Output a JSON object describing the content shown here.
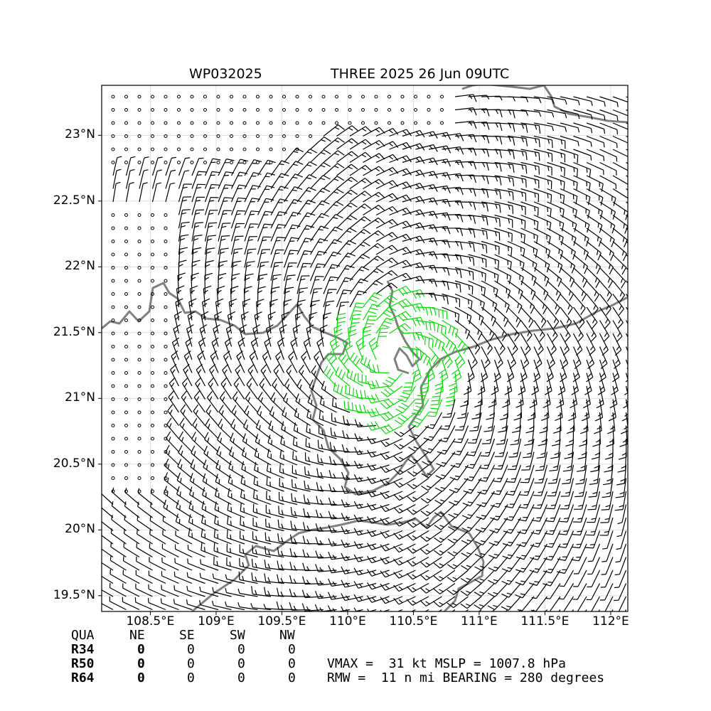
{
  "title": {
    "left": "WP032025",
    "right": "THREE 2025 26 Jun 09UTC"
  },
  "map": {
    "y_ticks": [
      {
        "label": "23°N",
        "lat": 23.0
      },
      {
        "label": "22.5°N",
        "lat": 22.5
      },
      {
        "label": "22°N",
        "lat": 22.0
      },
      {
        "label": "21.5°N",
        "lat": 21.5
      },
      {
        "label": "21°N",
        "lat": 21.0
      },
      {
        "label": "20.5°N",
        "lat": 20.5
      },
      {
        "label": "20°N",
        "lat": 20.0
      },
      {
        "label": "19.5°N",
        "lat": 19.5
      }
    ],
    "x_ticks": [
      {
        "label": "108.5°E",
        "lon": 108.5
      },
      {
        "label": "109°E",
        "lon": 109.0
      },
      {
        "label": "109.5°E",
        "lon": 109.5
      },
      {
        "label": "110°E",
        "lon": 110.0
      },
      {
        "label": "110.5°E",
        "lon": 110.5
      },
      {
        "label": "111°E",
        "lon": 111.0
      },
      {
        "label": "111.5°E",
        "lon": 111.5
      },
      {
        "label": "112°E",
        "lon": 112.0
      }
    ],
    "lon_range": [
      108.13,
      112.13
    ],
    "lat_range": [
      19.38,
      23.38
    ],
    "center": {
      "lon": 110.36,
      "lat": 21.3
    },
    "coastline_color": "#808080",
    "barb_color": "#000000",
    "strong_barb_color": "#00dd00",
    "grid": true
  },
  "wind_radii_table": {
    "header": [
      "QUA",
      "NE",
      "SE",
      "SW",
      "NW"
    ],
    "rows": [
      {
        "label": "R34",
        "values": [
          "0",
          "0",
          "0",
          "0"
        ]
      },
      {
        "label": "R50",
        "values": [
          "0",
          "0",
          "0",
          "0"
        ]
      },
      {
        "label": "R64",
        "values": [
          "0",
          "0",
          "0",
          "0"
        ]
      }
    ]
  },
  "stats": {
    "line1": "VMAX =  31 kt MSLP = 1007.8 hPa",
    "line2": "RMW =  11 n mi BEARING = 280 degrees"
  }
}
